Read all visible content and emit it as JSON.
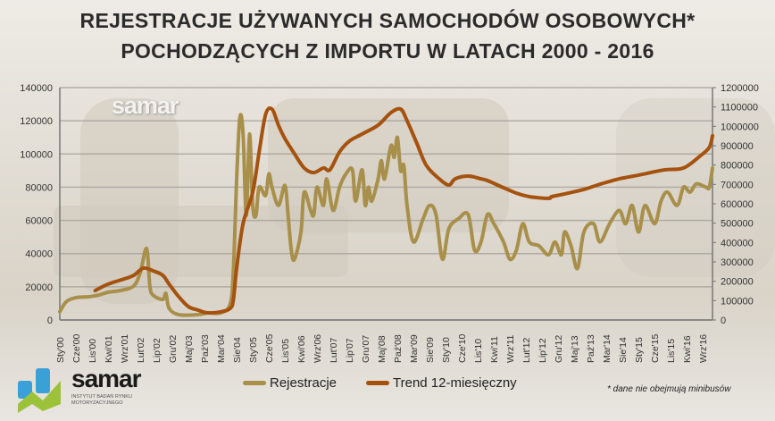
{
  "chart_data": {
    "type": "line",
    "title_line1": "REJESTRACJE UŻYWANYCH SAMOCHODÓW OSOBOWYCH*",
    "title_line2": "POCHODZĄCYCH Z IMPORTU W LATACH 2000 - 2016",
    "x_unit": "month index from Sty'00 (0) to Gru'16 (203)",
    "x_range": [
      0,
      203
    ],
    "x_tick_step": 5,
    "x_tick_labels": [
      "Sty'00",
      "Cze'00",
      "Lis'00",
      "Kwi'01",
      "Wrz'01",
      "Lut'02",
      "Lip'02",
      "Gru'02",
      "Maj'03",
      "Paź'03",
      "Mar'04",
      "Sie'04",
      "Sty'05",
      "Cze'05",
      "Lis'05",
      "Kwi'06",
      "Wrz'06",
      "Lut'07",
      "Lip'07",
      "Gru'07",
      "Maj'08",
      "Paź'08",
      "Mar'09",
      "Sie'09",
      "Sty'10",
      "Cze'10",
      "Lis'10",
      "Kwi'11",
      "Wrz'11",
      "Lut'12",
      "Lip'12",
      "Gru'12",
      "Maj'13",
      "Paź'13",
      "Mar'14",
      "Sie'14",
      "Sty'15",
      "Cze'15",
      "Lis'15",
      "Kwi'16",
      "Wrz'16"
    ],
    "y_left": {
      "range": [
        0,
        140000
      ],
      "ticks": [
        "0",
        "20000",
        "40000",
        "60000",
        "80000",
        "100000",
        "120000",
        "140000"
      ]
    },
    "y_right": {
      "range": [
        0,
        1200000
      ],
      "ticks": [
        "0",
        "100000",
        "200000",
        "300000",
        "400000",
        "500000",
        "600000",
        "700000",
        "800000",
        "900000",
        "1000000",
        "1100000",
        "1200000"
      ]
    },
    "grid": true,
    "legend_position": "bottom",
    "series": [
      {
        "name": "Rejestracje",
        "axis": "left",
        "color": "#a88f4a",
        "points": [
          [
            0,
            5000
          ],
          [
            2,
            11000
          ],
          [
            5,
            13500
          ],
          [
            9,
            14000
          ],
          [
            12,
            15000
          ],
          [
            15,
            16700
          ],
          [
            19,
            17800
          ],
          [
            23,
            20500
          ],
          [
            25,
            28500
          ],
          [
            27,
            43000
          ],
          [
            28,
            20500
          ],
          [
            29,
            15000
          ],
          [
            32,
            12400
          ],
          [
            33,
            16000
          ],
          [
            34,
            7000
          ],
          [
            37,
            3200
          ],
          [
            43,
            3200
          ],
          [
            46,
            4300
          ],
          [
            50,
            4300
          ],
          [
            53,
            9700
          ],
          [
            54,
            31000
          ],
          [
            55,
            85000
          ],
          [
            56,
            122000
          ],
          [
            57,
            112000
          ],
          [
            58,
            63000
          ],
          [
            59,
            112000
          ],
          [
            60,
            69000
          ],
          [
            61,
            63000
          ],
          [
            62,
            80000
          ],
          [
            64,
            75000
          ],
          [
            65,
            88000
          ],
          [
            66,
            80000
          ],
          [
            68,
            69000
          ],
          [
            70,
            81000
          ],
          [
            71,
            63000
          ],
          [
            72,
            42000
          ],
          [
            73,
            36600
          ],
          [
            75,
            53000
          ],
          [
            76,
            77000
          ],
          [
            78,
            66000
          ],
          [
            79,
            63500
          ],
          [
            80,
            80000
          ],
          [
            82,
            69000
          ],
          [
            83,
            85000
          ],
          [
            85,
            66000
          ],
          [
            87,
            80000
          ],
          [
            89,
            88000
          ],
          [
            91,
            90500
          ],
          [
            92,
            71600
          ],
          [
            94,
            90500
          ],
          [
            95,
            69000
          ],
          [
            96,
            80000
          ],
          [
            97,
            71600
          ],
          [
            99,
            85000
          ],
          [
            100,
            96000
          ],
          [
            101,
            85000
          ],
          [
            103,
            105000
          ],
          [
            104,
            98000
          ],
          [
            105,
            110000
          ],
          [
            106,
            90000
          ],
          [
            107,
            93000
          ],
          [
            108,
            69000
          ],
          [
            110,
            47000
          ],
          [
            113,
            61000
          ],
          [
            115,
            69000
          ],
          [
            117,
            63500
          ],
          [
            119,
            36600
          ],
          [
            121,
            55000
          ],
          [
            124,
            61000
          ],
          [
            127,
            63500
          ],
          [
            129,
            42000
          ],
          [
            131,
            47000
          ],
          [
            133,
            63500
          ],
          [
            135,
            58000
          ],
          [
            138,
            47000
          ],
          [
            140,
            36600
          ],
          [
            142,
            42000
          ],
          [
            144,
            58000
          ],
          [
            146,
            47000
          ],
          [
            149,
            44700
          ],
          [
            152,
            39300
          ],
          [
            154,
            47000
          ],
          [
            156,
            39300
          ],
          [
            157,
            53000
          ],
          [
            159,
            44700
          ],
          [
            161,
            31000
          ],
          [
            163,
            53000
          ],
          [
            166,
            58000
          ],
          [
            168,
            47000
          ],
          [
            171,
            58000
          ],
          [
            174,
            66000
          ],
          [
            176,
            58000
          ],
          [
            178,
            69000
          ],
          [
            180,
            53000
          ],
          [
            182,
            69000
          ],
          [
            185,
            58000
          ],
          [
            187,
            71600
          ],
          [
            189,
            77000
          ],
          [
            192,
            69000
          ],
          [
            194,
            80000
          ],
          [
            196,
            77000
          ],
          [
            198,
            82000
          ],
          [
            201,
            80000
          ],
          [
            202,
            80000
          ],
          [
            203,
            91500
          ]
        ]
      },
      {
        "name": "Trend 12-miesięczny",
        "axis": "right",
        "color": "#a5520f",
        "points": [
          [
            11,
            152000
          ],
          [
            15,
            185000
          ],
          [
            20,
            212000
          ],
          [
            23,
            231000
          ],
          [
            26,
            268000
          ],
          [
            29,
            254000
          ],
          [
            32,
            231000
          ],
          [
            34,
            185000
          ],
          [
            37,
            120000
          ],
          [
            40,
            69000
          ],
          [
            43,
            51000
          ],
          [
            46,
            37000
          ],
          [
            50,
            42000
          ],
          [
            53,
            60000
          ],
          [
            54,
            106000
          ],
          [
            55,
            268000
          ],
          [
            57,
            498000
          ],
          [
            60,
            660000
          ],
          [
            62,
            868000
          ],
          [
            64,
            1061000
          ],
          [
            66,
            1089000
          ],
          [
            68,
            1006000
          ],
          [
            70,
            937000
          ],
          [
            73,
            858000
          ],
          [
            76,
            785000
          ],
          [
            79,
            761000
          ],
          [
            82,
            785000
          ],
          [
            84,
            775000
          ],
          [
            87,
            868000
          ],
          [
            90,
            923000
          ],
          [
            94,
            960000
          ],
          [
            99,
            1006000
          ],
          [
            103,
            1071000
          ],
          [
            106,
            1089000
          ],
          [
            108,
            1029000
          ],
          [
            111,
            914000
          ],
          [
            114,
            798000
          ],
          [
            118,
            729000
          ],
          [
            121,
            697000
          ],
          [
            123,
            729000
          ],
          [
            127,
            743000
          ],
          [
            131,
            729000
          ],
          [
            133,
            720000
          ],
          [
            138,
            683000
          ],
          [
            142,
            655000
          ],
          [
            146,
            637000
          ],
          [
            152,
            628000
          ],
          [
            153,
            637000
          ],
          [
            157,
            651000
          ],
          [
            163,
            674000
          ],
          [
            168,
            701000
          ],
          [
            174,
            729000
          ],
          [
            180,
            748000
          ],
          [
            188,
            775000
          ],
          [
            194,
            785000
          ],
          [
            199,
            845000
          ],
          [
            202,
            891000
          ],
          [
            203,
            951000
          ]
        ]
      }
    ]
  },
  "watermark": "samar",
  "logo": {
    "name": "samar",
    "subtitle": "INSTYTUT BADAŃ RYNKU MOTORYZACYJNEGO"
  },
  "legend": {
    "series1": "Rejestracje",
    "series2": "Trend 12-miesięczny"
  },
  "footnote": "* dane nie obejmują minibusów"
}
